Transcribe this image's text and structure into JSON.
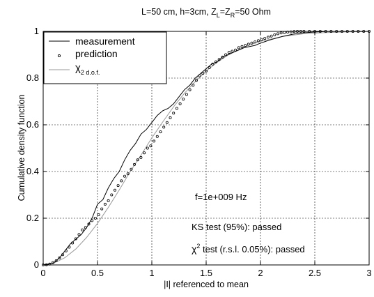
{
  "chart_data": {
    "type": "line",
    "title_main": "L=50 cm, h=3cm, Z",
    "title_sub1": "L",
    "title_mid": "=Z",
    "title_sub2": "R",
    "title_end": "=50 Ohm",
    "xlabel": "|I| referenced to mean",
    "ylabel": "Cumulative density function",
    "xlim": [
      0,
      3
    ],
    "ylim": [
      0,
      1
    ],
    "xticks": [
      "0",
      "0.5",
      "1",
      "1.5",
      "2",
      "2.5",
      "3"
    ],
    "yticks": [
      "0",
      "0.2",
      "0.4",
      "0.6",
      "0.8",
      "1"
    ],
    "grid": true,
    "legend": {
      "placement": "top-left",
      "entries": [
        {
          "label": "measurement",
          "style": "solid-line",
          "color": "#000000"
        },
        {
          "label": "prediction",
          "style": "circle-marker",
          "color": "#000000"
        },
        {
          "label_base": "χ",
          "label_sub": "2 d.o.f.",
          "style": "solid-line",
          "color": "#9a9a9a"
        }
      ]
    },
    "annotations": {
      "frequency": "f=1e+009 Hz",
      "ks_test": "KS test (95%): passed",
      "chi_prefix": "χ",
      "chi_sup": "2",
      "chi_rest": " test (r.s.l. 0.05%): passed"
    },
    "series": [
      {
        "name": "measurement",
        "color": "#000000",
        "x": [
          0,
          0.05,
          0.1,
          0.15,
          0.2,
          0.25,
          0.3,
          0.35,
          0.4,
          0.45,
          0.5,
          0.55,
          0.6,
          0.65,
          0.7,
          0.75,
          0.8,
          0.85,
          0.9,
          0.95,
          1.0,
          1.05,
          1.1,
          1.15,
          1.2,
          1.25,
          1.3,
          1.35,
          1.4,
          1.45,
          1.5,
          1.55,
          1.6,
          1.65,
          1.7,
          1.75,
          1.8,
          1.85,
          1.9,
          1.95,
          2.0,
          2.1,
          2.2,
          2.3,
          2.4,
          2.5,
          2.6,
          2.8,
          3.0
        ],
        "y": [
          0,
          0.003,
          0.01,
          0.03,
          0.06,
          0.09,
          0.11,
          0.13,
          0.16,
          0.2,
          0.26,
          0.28,
          0.33,
          0.37,
          0.4,
          0.45,
          0.49,
          0.52,
          0.56,
          0.58,
          0.61,
          0.64,
          0.66,
          0.67,
          0.69,
          0.72,
          0.75,
          0.77,
          0.8,
          0.82,
          0.84,
          0.86,
          0.87,
          0.89,
          0.9,
          0.91,
          0.92,
          0.93,
          0.935,
          0.94,
          0.95,
          0.965,
          0.978,
          0.988,
          0.994,
          0.997,
          0.999,
          1.0,
          1.0
        ]
      },
      {
        "name": "prediction",
        "color": "#000000",
        "x": [
          0.0,
          0.03,
          0.06,
          0.09,
          0.12,
          0.15,
          0.18,
          0.21,
          0.24,
          0.27,
          0.3,
          0.33,
          0.36,
          0.39,
          0.42,
          0.45,
          0.48,
          0.51,
          0.54,
          0.57,
          0.6,
          0.63,
          0.66,
          0.69,
          0.72,
          0.75,
          0.78,
          0.81,
          0.84,
          0.87,
          0.9,
          0.93,
          0.96,
          0.99,
          1.02,
          1.05,
          1.08,
          1.11,
          1.14,
          1.17,
          1.2,
          1.23,
          1.26,
          1.29,
          1.32,
          1.35,
          1.38,
          1.41,
          1.44,
          1.47,
          1.5,
          1.53,
          1.56,
          1.59,
          1.62,
          1.65,
          1.68,
          1.71,
          1.74,
          1.77,
          1.8,
          1.83,
          1.86,
          1.89,
          1.92,
          1.95,
          1.98,
          2.01,
          2.04,
          2.07,
          2.1,
          2.13,
          2.16,
          2.19,
          2.22,
          2.25,
          2.28,
          2.31,
          2.34,
          2.37,
          2.4,
          2.45,
          2.5,
          2.55,
          2.6,
          2.65,
          2.7,
          2.75,
          2.8,
          2.85,
          2.9,
          2.95,
          3.0
        ],
        "y": [
          0.0,
          0.001,
          0.004,
          0.01,
          0.018,
          0.03,
          0.044,
          0.06,
          0.076,
          0.094,
          0.112,
          0.13,
          0.15,
          0.16,
          0.175,
          0.19,
          0.2,
          0.215,
          0.24,
          0.26,
          0.275,
          0.3,
          0.32,
          0.34,
          0.36,
          0.38,
          0.39,
          0.41,
          0.43,
          0.45,
          0.46,
          0.48,
          0.5,
          0.51,
          0.53,
          0.55,
          0.57,
          0.59,
          0.61,
          0.63,
          0.65,
          0.67,
          0.69,
          0.71,
          0.73,
          0.75,
          0.77,
          0.79,
          0.81,
          0.82,
          0.83,
          0.845,
          0.86,
          0.87,
          0.88,
          0.89,
          0.9,
          0.91,
          0.915,
          0.92,
          0.93,
          0.935,
          0.94,
          0.945,
          0.95,
          0.955,
          0.96,
          0.965,
          0.97,
          0.975,
          0.98,
          0.985,
          0.99,
          0.993,
          0.995,
          0.997,
          0.998,
          0.999,
          1.0,
          1.0,
          1.0,
          1.0,
          1.0,
          1.0,
          1.0,
          1.0,
          1.0,
          1.0,
          1.0,
          1.0,
          1.0,
          1.0,
          1.0
        ]
      },
      {
        "name": "χ2 d.o.f.",
        "color": "#9a9a9a",
        "x": [
          0,
          0.1,
          0.2,
          0.3,
          0.4,
          0.5,
          0.6,
          0.7,
          0.8,
          0.9,
          1.0,
          1.1,
          1.2,
          1.3,
          1.4,
          1.5,
          1.6,
          1.7,
          1.8,
          1.9,
          2.0,
          2.2,
          2.4,
          2.6,
          2.8,
          3.0
        ],
        "y": [
          0,
          0.008,
          0.031,
          0.068,
          0.118,
          0.178,
          0.247,
          0.321,
          0.399,
          0.47,
          0.544,
          0.612,
          0.677,
          0.735,
          0.785,
          0.83,
          0.867,
          0.898,
          0.922,
          0.942,
          0.957,
          0.978,
          0.99,
          0.995,
          0.998,
          0.999
        ]
      }
    ]
  }
}
